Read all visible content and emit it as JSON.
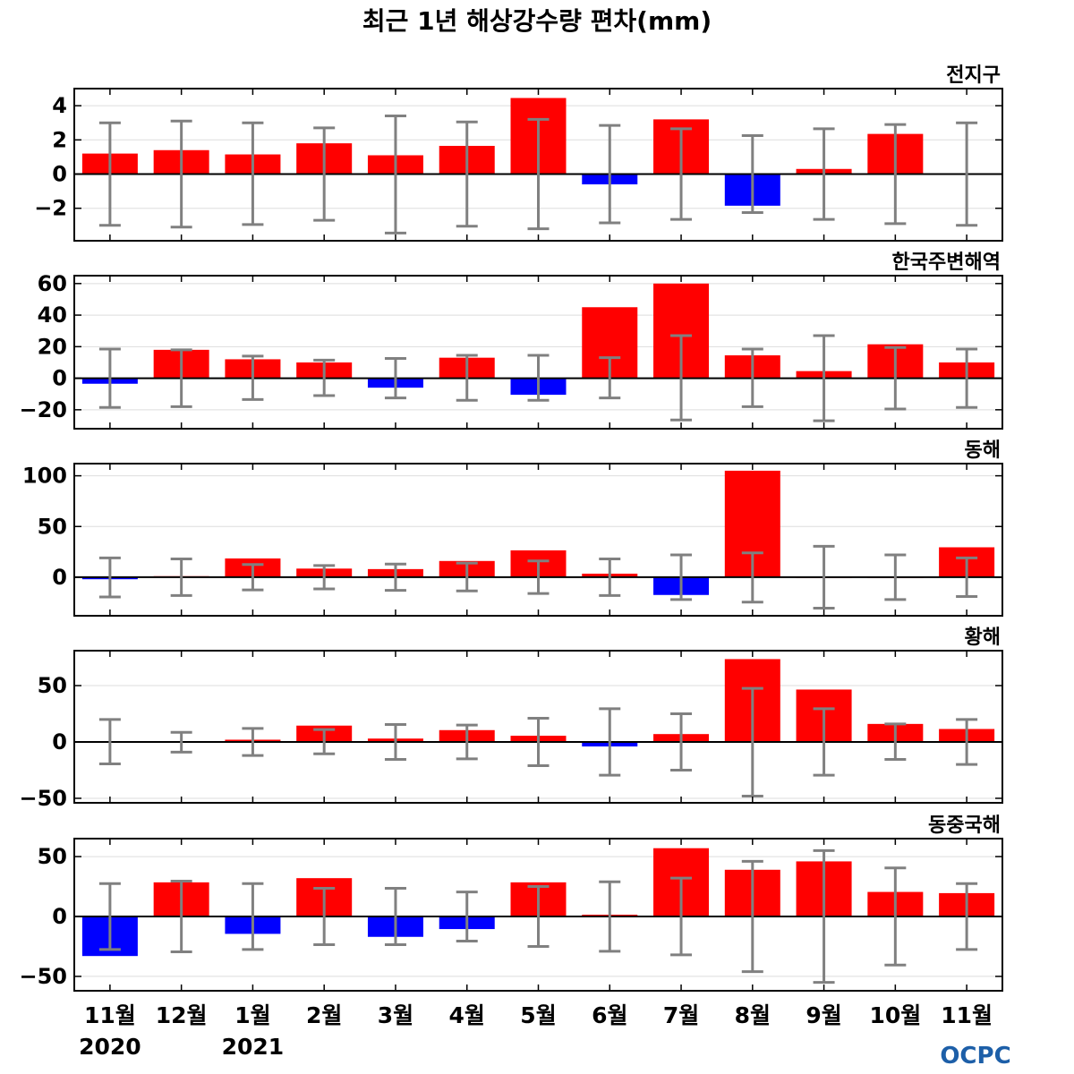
{
  "title": "최근 1년 해상강수량 편차(mm)",
  "logo": "OCPC",
  "colors": {
    "positive": "#ff0000",
    "negative": "#0000ff",
    "errorbar": "#808080",
    "zero_line": "#000000",
    "grid": "#dddddd"
  },
  "chart_data": [
    {
      "type": "bar",
      "title": "전지구",
      "categories": [
        "11월",
        "12월",
        "1월",
        "2월",
        "3월",
        "4월",
        "5월",
        "6월",
        "7월",
        "8월",
        "9월",
        "10월",
        "11월"
      ],
      "values": [
        1.2,
        1.4,
        1.15,
        1.8,
        1.1,
        1.65,
        4.45,
        -0.6,
        3.2,
        -1.85,
        0.3,
        2.35,
        0.05
      ],
      "error_upper": [
        3.0,
        3.1,
        3.0,
        2.7,
        3.4,
        3.05,
        3.2,
        2.85,
        2.65,
        2.25,
        2.65,
        2.9,
        3.0
      ],
      "error_lower": [
        -3.0,
        -3.1,
        -2.95,
        -2.7,
        -3.45,
        -3.05,
        -3.2,
        -2.85,
        -2.65,
        -2.25,
        -2.65,
        -2.9,
        -3.0
      ],
      "ylim": [
        -3.9,
        5.0
      ],
      "yticks": [
        4,
        2,
        0,
        -2
      ],
      "ytick_labels": [
        "4",
        "2",
        "0",
        "−2"
      ],
      "grid": true
    },
    {
      "type": "bar",
      "title": "한국주변해역",
      "categories": [
        "11월",
        "12월",
        "1월",
        "2월",
        "3월",
        "4월",
        "5월",
        "6월",
        "7월",
        "8월",
        "9월",
        "10월",
        "11월"
      ],
      "values": [
        -3.5,
        18,
        12,
        10,
        -6,
        13,
        -10.5,
        45,
        60,
        14.5,
        4.5,
        21.5,
        10
      ],
      "error_upper": [
        18.5,
        18,
        14,
        11.5,
        12.5,
        14.5,
        14.5,
        13,
        27,
        18.5,
        27,
        19.5,
        18.5
      ],
      "error_lower": [
        -18.5,
        -18,
        -13.5,
        -11,
        -12.5,
        -14,
        -14,
        -12.5,
        -26.5,
        -18,
        -27,
        -19.5,
        -18.5
      ],
      "ylim": [
        -32,
        65
      ],
      "yticks": [
        60,
        40,
        20,
        0,
        -20
      ],
      "ytick_labels": [
        "60",
        "40",
        "20",
        "0",
        "−20"
      ],
      "grid": true
    },
    {
      "type": "bar",
      "title": "동해",
      "categories": [
        "11월",
        "12월",
        "1월",
        "2월",
        "3월",
        "4월",
        "5월",
        "6월",
        "7월",
        "8월",
        "9월",
        "10월",
        "11월"
      ],
      "values": [
        -2,
        1,
        18.5,
        8.5,
        8,
        16,
        26.5,
        3.5,
        -17.5,
        105,
        0.5,
        0.5,
        29.5
      ],
      "error_upper": [
        19,
        18,
        12.5,
        11.5,
        13,
        14,
        16,
        18,
        22,
        24,
        30.5,
        22,
        19
      ],
      "error_lower": [
        -19.5,
        -18,
        -12.5,
        -11.5,
        -13,
        -13.5,
        -16,
        -18,
        -22,
        -24.5,
        -30.5,
        -22,
        -19
      ],
      "ylim": [
        -38,
        112
      ],
      "yticks": [
        100,
        50,
        0
      ],
      "ytick_labels": [
        "100",
        "50",
        "0"
      ],
      "grid": true
    },
    {
      "type": "bar",
      "title": "황해",
      "categories": [
        "11월",
        "12월",
        "1월",
        "2월",
        "3월",
        "4월",
        "5월",
        "6월",
        "7월",
        "8월",
        "9월",
        "10월",
        "11월"
      ],
      "values": [
        0.5,
        0.5,
        2,
        14.5,
        3,
        10.5,
        5.5,
        -4,
        7,
        73.5,
        46.5,
        16,
        11.5
      ],
      "error_upper": [
        20,
        8.5,
        12,
        11,
        15.5,
        15,
        21,
        29.5,
        25,
        47.5,
        29.5,
        16,
        20
      ],
      "error_lower": [
        -19.5,
        -9,
        -12,
        -10.5,
        -15.5,
        -15,
        -21,
        -29.5,
        -25,
        -48,
        -29.5,
        -15.5,
        -20
      ],
      "ylim": [
        -54,
        81
      ],
      "yticks": [
        50,
        0,
        -50
      ],
      "ytick_labels": [
        "50",
        "0",
        "−50"
      ],
      "grid": true
    },
    {
      "type": "bar",
      "title": "동중국해",
      "categories": [
        "11월",
        "12월",
        "1월",
        "2월",
        "3월",
        "4월",
        "5월",
        "6월",
        "7월",
        "8월",
        "9월",
        "10월",
        "11월"
      ],
      "values": [
        -33,
        28.5,
        -14.5,
        32,
        -17,
        -10.5,
        28.5,
        1.5,
        57,
        39,
        46,
        20.5,
        19.5
      ],
      "error_upper": [
        27.5,
        29.5,
        27.5,
        23.5,
        23.5,
        20.5,
        25,
        29,
        32,
        46,
        55,
        40.5,
        27.5
      ],
      "error_lower": [
        -27.5,
        -29.5,
        -27.5,
        -23.5,
        -23.5,
        -20.5,
        -25,
        -29,
        -32,
        -46,
        -55,
        -40.5,
        -27.5
      ],
      "ylim": [
        -62,
        65
      ],
      "yticks": [
        50,
        0,
        -50
      ],
      "ytick_labels": [
        "50",
        "0",
        "−50"
      ],
      "grid": true
    }
  ],
  "x_axis": {
    "month_labels": [
      "11월",
      "12월",
      "1월",
      "2월",
      "3월",
      "4월",
      "5월",
      "6월",
      "7월",
      "8월",
      "9월",
      "10월",
      "11월"
    ],
    "year_labels": [
      {
        "text": "2020",
        "index": 0
      },
      {
        "text": "2021",
        "index": 2
      }
    ]
  }
}
